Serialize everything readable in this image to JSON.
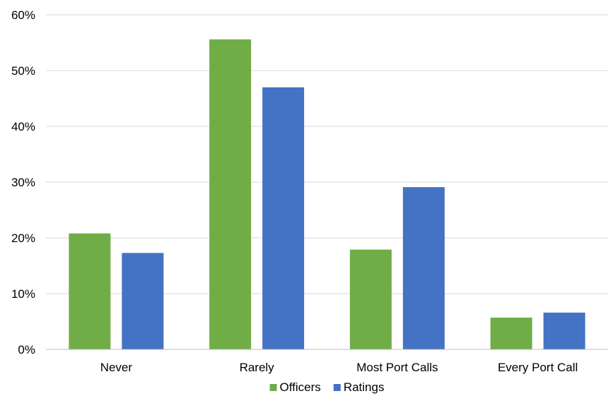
{
  "chart_data": {
    "type": "bar",
    "title": "",
    "xlabel": "",
    "ylabel": "",
    "categories": [
      "Never",
      "Rarely",
      "Most Port Calls",
      "Every Port Call"
    ],
    "series": [
      {
        "name": "Officers",
        "color": "#70ad47",
        "values": [
          20.8,
          55.6,
          17.9,
          5.7
        ]
      },
      {
        "name": "Ratings",
        "color": "#4472c4",
        "values": [
          17.3,
          47.0,
          29.1,
          6.6
        ]
      }
    ],
    "ylim": [
      0,
      60
    ],
    "yticks": [
      0,
      10,
      20,
      30,
      40,
      50,
      60
    ],
    "ytick_labels": [
      "0%",
      "10%",
      "20%",
      "30%",
      "40%",
      "50%",
      "60%"
    ],
    "grid": true,
    "legend_position": "bottom"
  }
}
